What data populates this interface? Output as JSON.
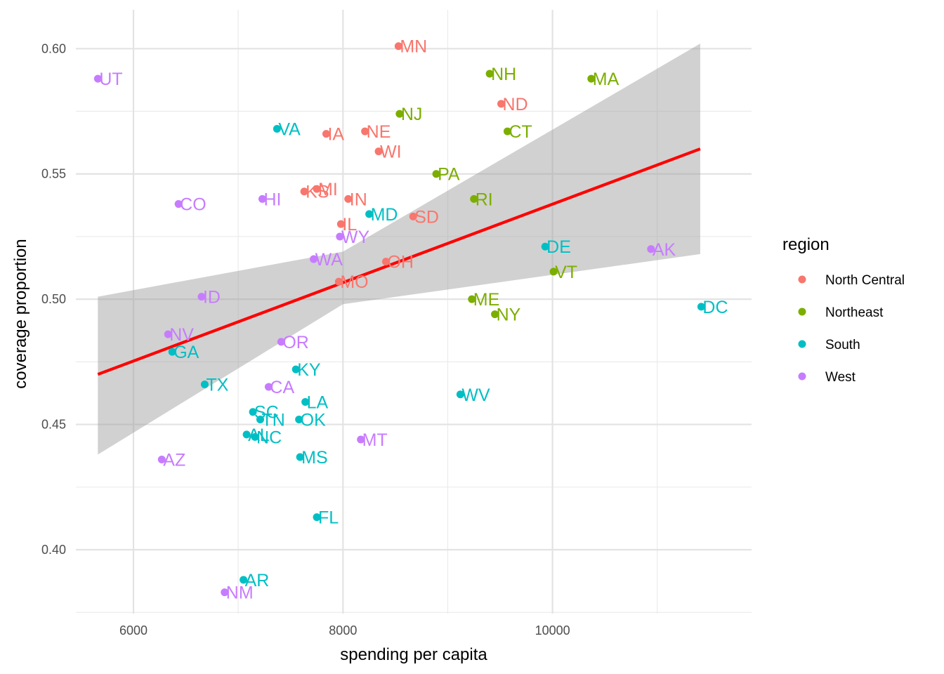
{
  "chart_data": {
    "type": "scatter",
    "title": "",
    "xlabel": "spending per capita",
    "ylabel": "coverage proportion",
    "xlim": [
      5450,
      11900
    ],
    "ylim": [
      0.3745,
      0.6155
    ],
    "x_ticks": [
      {
        "value": 6000,
        "label": "6000"
      },
      {
        "value": 8000,
        "label": "8000"
      },
      {
        "value": 10000,
        "label": "10000"
      }
    ],
    "y_ticks": [
      {
        "value": 0.4,
        "label": "0.40"
      },
      {
        "value": 0.45,
        "label": "0.45"
      },
      {
        "value": 0.5,
        "label": "0.50"
      },
      {
        "value": 0.55,
        "label": "0.55"
      },
      {
        "value": 0.6,
        "label": "0.60"
      }
    ],
    "grid": true,
    "legend": {
      "title": "region",
      "position": "right",
      "entries": [
        {
          "name": "North Central",
          "color": "#F8766D"
        },
        {
          "name": "Northeast",
          "color": "#7CAE00"
        },
        {
          "name": "South",
          "color": "#00BFC4"
        },
        {
          "name": "West",
          "color": "#C77CFF"
        }
      ]
    },
    "trend": {
      "color": "#FF0000",
      "band_color": "#999999",
      "x": [
        5660,
        11410
      ],
      "y": [
        0.47,
        0.56
      ],
      "band_x": [
        5660,
        8000,
        11410
      ],
      "band_lower": [
        0.438,
        0.498,
        0.518
      ],
      "band_upper": [
        0.501,
        0.519,
        0.602
      ]
    },
    "points": [
      {
        "label": "MN",
        "region": "North Central",
        "x": 8530,
        "y": 0.601
      },
      {
        "label": "ND",
        "region": "North Central",
        "x": 9510,
        "y": 0.578
      },
      {
        "label": "IA",
        "region": "North Central",
        "x": 7840,
        "y": 0.566
      },
      {
        "label": "NE",
        "region": "North Central",
        "x": 8210,
        "y": 0.567
      },
      {
        "label": "WI",
        "region": "North Central",
        "x": 8340,
        "y": 0.559
      },
      {
        "label": "KS",
        "region": "North Central",
        "x": 7630,
        "y": 0.543
      },
      {
        "label": "MI",
        "region": "North Central",
        "x": 7750,
        "y": 0.544
      },
      {
        "label": "IN",
        "region": "North Central",
        "x": 8050,
        "y": 0.54
      },
      {
        "label": "SD",
        "region": "North Central",
        "x": 8670,
        "y": 0.533
      },
      {
        "label": "IL",
        "region": "North Central",
        "x": 7980,
        "y": 0.53
      },
      {
        "label": "OH",
        "region": "North Central",
        "x": 8410,
        "y": 0.515
      },
      {
        "label": "MO",
        "region": "North Central",
        "x": 7960,
        "y": 0.507
      },
      {
        "label": "NH",
        "region": "Northeast",
        "x": 9400,
        "y": 0.59
      },
      {
        "label": "MA",
        "region": "Northeast",
        "x": 10370,
        "y": 0.588
      },
      {
        "label": "NJ",
        "region": "Northeast",
        "x": 8540,
        "y": 0.574
      },
      {
        "label": "CT",
        "region": "Northeast",
        "x": 9570,
        "y": 0.567
      },
      {
        "label": "PA",
        "region": "Northeast",
        "x": 8890,
        "y": 0.55
      },
      {
        "label": "RI",
        "region": "Northeast",
        "x": 9250,
        "y": 0.54
      },
      {
        "label": "VT",
        "region": "Northeast",
        "x": 10010,
        "y": 0.511
      },
      {
        "label": "ME",
        "region": "Northeast",
        "x": 9230,
        "y": 0.5
      },
      {
        "label": "NY",
        "region": "Northeast",
        "x": 9450,
        "y": 0.494
      },
      {
        "label": "VA",
        "region": "South",
        "x": 7370,
        "y": 0.568
      },
      {
        "label": "MD",
        "region": "South",
        "x": 8250,
        "y": 0.534
      },
      {
        "label": "DE",
        "region": "South",
        "x": 9930,
        "y": 0.521
      },
      {
        "label": "DC",
        "region": "South",
        "x": 11420,
        "y": 0.497
      },
      {
        "label": "GA",
        "region": "South",
        "x": 6370,
        "y": 0.479
      },
      {
        "label": "KY",
        "region": "South",
        "x": 7550,
        "y": 0.472
      },
      {
        "label": "TX",
        "region": "South",
        "x": 6680,
        "y": 0.466
      },
      {
        "label": "LA",
        "region": "South",
        "x": 7640,
        "y": 0.459
      },
      {
        "label": "WV",
        "region": "South",
        "x": 9120,
        "y": 0.462
      },
      {
        "label": "SC",
        "region": "South",
        "x": 7140,
        "y": 0.455
      },
      {
        "label": "TN",
        "region": "South",
        "x": 7210,
        "y": 0.452
      },
      {
        "label": "OK",
        "region": "South",
        "x": 7580,
        "y": 0.452
      },
      {
        "label": "AL",
        "region": "South",
        "x": 7080,
        "y": 0.446
      },
      {
        "label": "NC",
        "region": "South",
        "x": 7160,
        "y": 0.445
      },
      {
        "label": "MS",
        "region": "South",
        "x": 7590,
        "y": 0.437
      },
      {
        "label": "FL",
        "region": "South",
        "x": 7750,
        "y": 0.413
      },
      {
        "label": "AR",
        "region": "South",
        "x": 7050,
        "y": 0.388
      },
      {
        "label": "UT",
        "region": "West",
        "x": 5660,
        "y": 0.588
      },
      {
        "label": "CO",
        "region": "West",
        "x": 6430,
        "y": 0.538
      },
      {
        "label": "HI",
        "region": "West",
        "x": 7230,
        "y": 0.54
      },
      {
        "label": "WY",
        "region": "West",
        "x": 7970,
        "y": 0.525
      },
      {
        "label": "WA",
        "region": "West",
        "x": 7720,
        "y": 0.516
      },
      {
        "label": "AK",
        "region": "West",
        "x": 10940,
        "y": 0.52
      },
      {
        "label": "ID",
        "region": "West",
        "x": 6650,
        "y": 0.501
      },
      {
        "label": "NV",
        "region": "West",
        "x": 6330,
        "y": 0.486
      },
      {
        "label": "OR",
        "region": "West",
        "x": 7410,
        "y": 0.483
      },
      {
        "label": "CA",
        "region": "West",
        "x": 7290,
        "y": 0.465
      },
      {
        "label": "MT",
        "region": "West",
        "x": 8170,
        "y": 0.444
      },
      {
        "label": "AZ",
        "region": "West",
        "x": 6270,
        "y": 0.436
      },
      {
        "label": "NM",
        "region": "West",
        "x": 6870,
        "y": 0.383
      }
    ]
  }
}
